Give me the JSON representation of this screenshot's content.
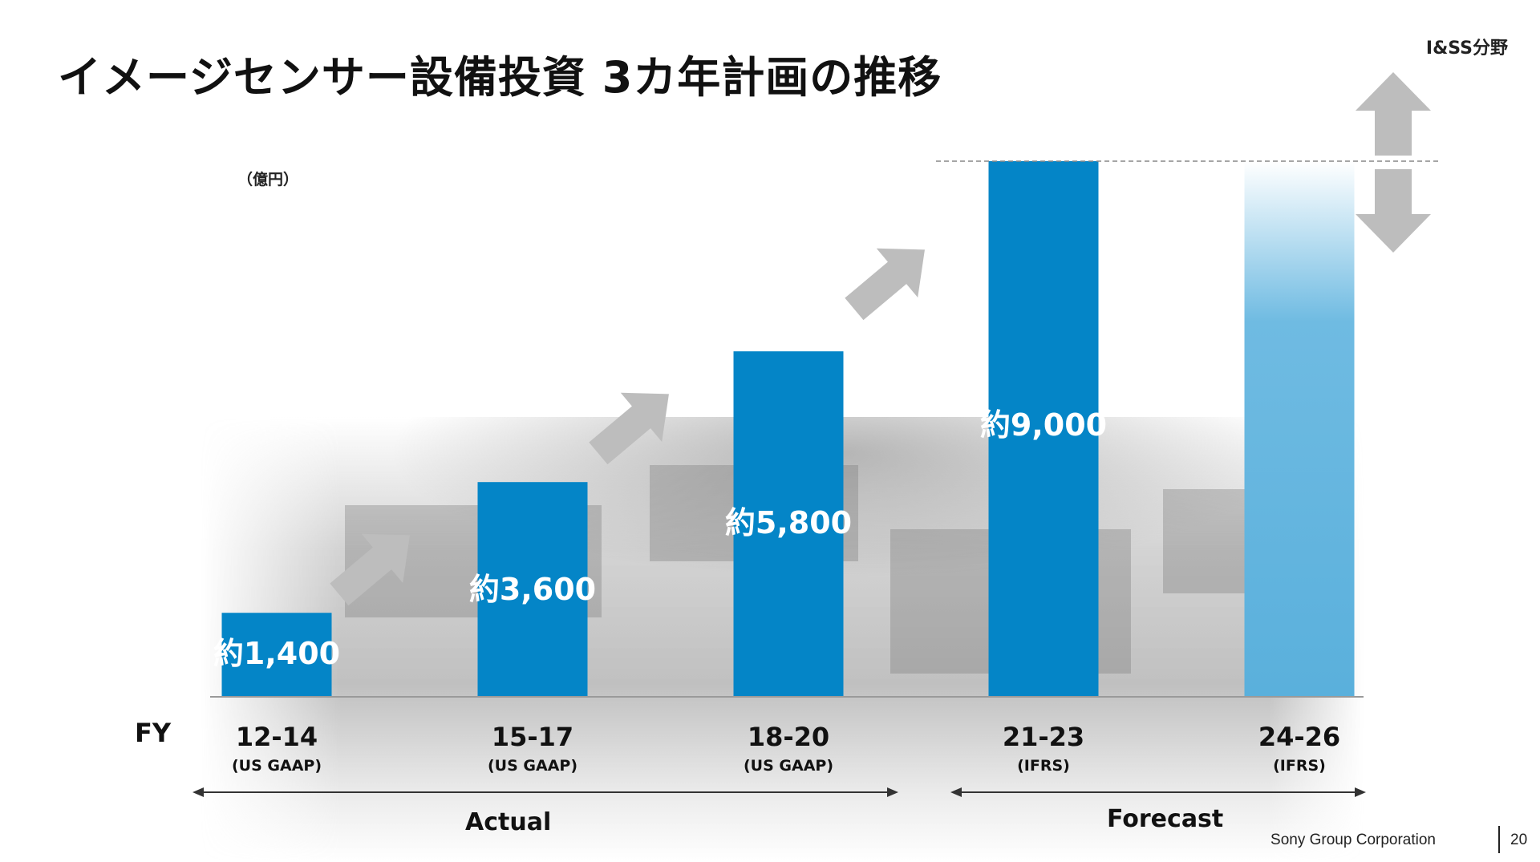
{
  "title": "イメージセンサー設備投資 3カ年計画の推移",
  "segment": "I&SS分野",
  "unit": "（億円）",
  "footer": {
    "company": "Sony Group Corporation",
    "page": "20"
  },
  "chart_data": {
    "type": "bar",
    "title": "",
    "xlabel": "FY",
    "ylabel": "",
    "ylim": [
      0,
      9000
    ],
    "categories": [
      "12-14",
      "15-17",
      "18-20",
      "21-23",
      "24-26"
    ],
    "category_sublabels": [
      "(US GAAP)",
      "(US GAAP)",
      "(US GAAP)",
      "(IFRS)",
      "(IFRS)"
    ],
    "values": [
      1400,
      3600,
      5800,
      9000,
      9000
    ],
    "value_labels": [
      "約1,400",
      "約3,600",
      "約5,800",
      "約9,000",
      ""
    ],
    "forecast_range_note": "24-26 shown as gradient bar with up/down arrows at 9,000 level",
    "periods": [
      {
        "label": "Actual",
        "categories": [
          "12-14",
          "15-17",
          "18-20"
        ]
      },
      {
        "label": "Forecast",
        "categories": [
          "21-23",
          "24-26"
        ]
      }
    ],
    "colors": {
      "bar": "#0485c7",
      "bar_light": "#5ab0dc",
      "arrow": "#bdbdbd"
    },
    "grid": false,
    "legend": "none"
  }
}
